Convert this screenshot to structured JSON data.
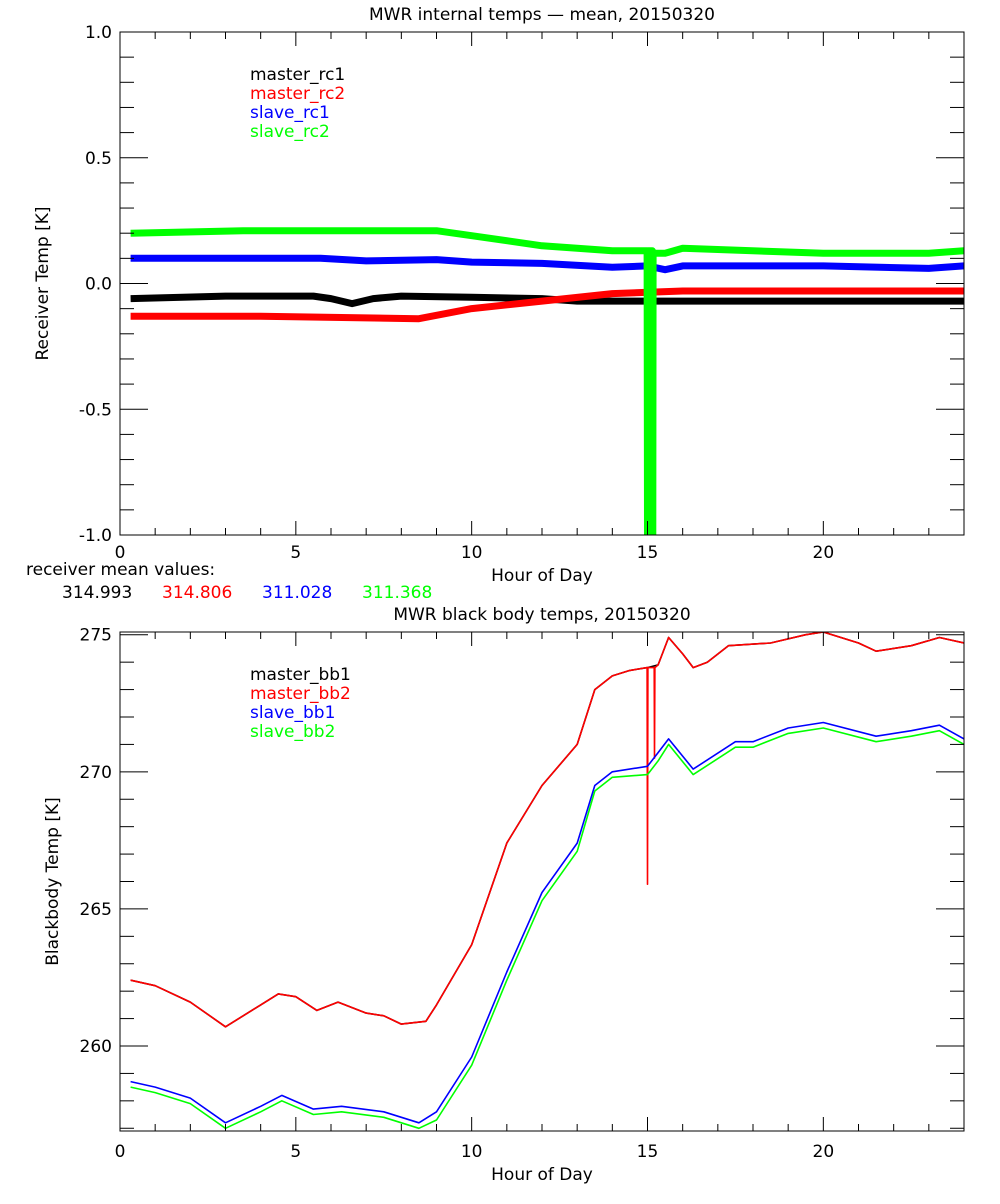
{
  "chart_data": [
    {
      "type": "line",
      "title": "MWR internal temps — mean, 20150320",
      "xlabel": "Hour of Day",
      "ylabel": "Receiver Temp [K]",
      "xlim": [
        0,
        24
      ],
      "ylim": [
        -1.0,
        1.0
      ],
      "xticks": [
        "0",
        "5",
        "10",
        "15",
        "20"
      ],
      "yticks": [
        "-1.0",
        "-0.5",
        "0.0",
        "0.5",
        "1.0"
      ],
      "grid": false,
      "legend_position": "top-left",
      "series": [
        {
          "name": "master_rc1",
          "color": "#000000",
          "x": [
            0.3,
            3,
            5.5,
            6,
            6.6,
            7.2,
            8,
            10,
            12,
            13,
            16,
            20,
            24
          ],
          "y": [
            -0.06,
            -0.05,
            -0.05,
            -0.06,
            -0.08,
            -0.06,
            -0.05,
            -0.055,
            -0.06,
            -0.07,
            -0.07,
            -0.07,
            -0.07
          ]
        },
        {
          "name": "master_rc2",
          "color": "#ff0000",
          "x": [
            0.3,
            4,
            8.5,
            10,
            12,
            14,
            16,
            20,
            24
          ],
          "y": [
            -0.13,
            -0.13,
            -0.14,
            -0.1,
            -0.07,
            -0.04,
            -0.03,
            -0.03,
            -0.03
          ]
        },
        {
          "name": "slave_rc1",
          "color": "#0000ff",
          "x": [
            0.3,
            3,
            5.7,
            7,
            9,
            10,
            12,
            14,
            15,
            15.5,
            16,
            20,
            23,
            24
          ],
          "y": [
            0.1,
            0.1,
            0.1,
            0.09,
            0.095,
            0.085,
            0.08,
            0.065,
            0.07,
            0.055,
            0.07,
            0.07,
            0.06,
            0.07
          ]
        },
        {
          "name": "slave_rc2",
          "color": "#00ff00",
          "x": [
            0.3,
            3.5,
            6,
            9,
            10,
            11,
            12,
            13,
            14,
            14.99,
            15.0,
            15.01,
            15.14,
            15.15,
            15.16,
            15.5,
            16,
            20,
            23,
            24
          ],
          "y": [
            0.2,
            0.21,
            0.21,
            0.21,
            0.19,
            0.17,
            0.15,
            0.14,
            0.13,
            0.13,
            -1.0,
            0.13,
            0.13,
            -1.0,
            0.12,
            0.12,
            0.14,
            0.12,
            0.12,
            0.13
          ]
        }
      ],
      "annotation": {
        "label": "receiver mean values:",
        "values": [
          {
            "text": "314.993",
            "color": "#000000"
          },
          {
            "text": "314.806",
            "color": "#ff0000"
          },
          {
            "text": "311.028",
            "color": "#0000ff"
          },
          {
            "text": "311.368",
            "color": "#00ff00"
          }
        ]
      }
    },
    {
      "type": "line",
      "title": "MWR black body temps, 20150320",
      "xlabel": "Hour of Day",
      "ylabel": "Blackbody Temp [K]",
      "xlim": [
        0,
        24
      ],
      "ylim": [
        256.9,
        275.1
      ],
      "xticks": [
        "0",
        "5",
        "10",
        "15",
        "20"
      ],
      "yticks": [
        "260",
        "265",
        "270",
        "275"
      ],
      "grid": false,
      "legend_position": "top-left",
      "series": [
        {
          "name": "master_bb1",
          "color": "#000000",
          "x": [
            0.3,
            1,
            2,
            3,
            4,
            4.5,
            5,
            5.6,
            6.2,
            7,
            7.5,
            8,
            8.7,
            9,
            10,
            11,
            12,
            13,
            13.5,
            14,
            14.5,
            15,
            15.3,
            15.6,
            16,
            16.3,
            16.7,
            17.3,
            18.5,
            19.5,
            20,
            21,
            21.5,
            22.5,
            23.3,
            24
          ],
          "y": [
            262.4,
            262.2,
            261.6,
            260.7,
            261.5,
            261.9,
            261.8,
            261.3,
            261.6,
            261.2,
            261.1,
            260.8,
            260.9,
            261.5,
            263.7,
            267.4,
            269.5,
            271.0,
            273.0,
            273.5,
            273.7,
            273.8,
            273.9,
            274.9,
            274.3,
            273.8,
            274.0,
            274.6,
            274.7,
            275.0,
            275.1,
            274.7,
            274.4,
            274.6,
            274.9,
            274.7
          ]
        },
        {
          "name": "master_bb2",
          "color": "#ff0000",
          "x": [
            0.3,
            1,
            2,
            3,
            4,
            4.5,
            5,
            5.6,
            6.2,
            7,
            7.5,
            8,
            8.7,
            9,
            10,
            11,
            12,
            13,
            13.5,
            14,
            14.5,
            14.99,
            15.0,
            15.01,
            15.19,
            15.2,
            15.21,
            15.3,
            15.6,
            16,
            16.3,
            16.7,
            17.3,
            18.5,
            19.5,
            20,
            21,
            21.5,
            22.5,
            23.3,
            24
          ],
          "y": [
            262.4,
            262.2,
            261.6,
            260.7,
            261.5,
            261.9,
            261.8,
            261.3,
            261.6,
            261.2,
            261.1,
            260.8,
            260.9,
            261.5,
            263.7,
            267.4,
            269.5,
            271.0,
            273.0,
            273.5,
            273.7,
            273.8,
            265.9,
            273.8,
            273.8,
            270.5,
            273.8,
            273.9,
            274.9,
            274.3,
            273.8,
            274.0,
            274.6,
            274.7,
            275.0,
            275.1,
            274.7,
            274.4,
            274.6,
            274.9,
            274.7
          ]
        },
        {
          "name": "slave_bb1",
          "color": "#0000ff",
          "x": [
            0.3,
            1,
            2,
            3,
            4,
            4.6,
            5.5,
            6.3,
            7.5,
            8.5,
            9,
            10,
            11,
            12,
            13,
            13.5,
            14,
            15,
            15.3,
            15.6,
            16.3,
            17.5,
            18,
            19,
            20,
            21.5,
            22.5,
            23.3,
            24
          ],
          "y": [
            258.7,
            258.5,
            258.1,
            257.2,
            257.8,
            258.2,
            257.7,
            257.8,
            257.6,
            257.2,
            257.6,
            259.6,
            262.7,
            265.6,
            267.4,
            269.5,
            270.0,
            270.2,
            270.7,
            271.2,
            270.1,
            271.1,
            271.1,
            271.6,
            271.8,
            271.3,
            271.5,
            271.7,
            271.2
          ]
        },
        {
          "name": "slave_bb2",
          "color": "#00ff00",
          "x": [
            0.3,
            1,
            2,
            3,
            4,
            4.6,
            5.5,
            6.3,
            7.5,
            8.5,
            9,
            10,
            11,
            12,
            13,
            13.5,
            14,
            15,
            15.3,
            15.6,
            16.3,
            17.5,
            18,
            19,
            20,
            21.5,
            22.5,
            23.3,
            24
          ],
          "y": [
            258.5,
            258.3,
            257.9,
            257.0,
            257.6,
            258.0,
            257.5,
            257.6,
            257.4,
            257.0,
            257.3,
            259.3,
            262.4,
            265.3,
            267.1,
            269.3,
            269.8,
            269.9,
            270.4,
            271.0,
            269.9,
            270.9,
            270.9,
            271.4,
            271.6,
            271.1,
            271.3,
            271.5,
            271.0
          ]
        }
      ]
    }
  ]
}
